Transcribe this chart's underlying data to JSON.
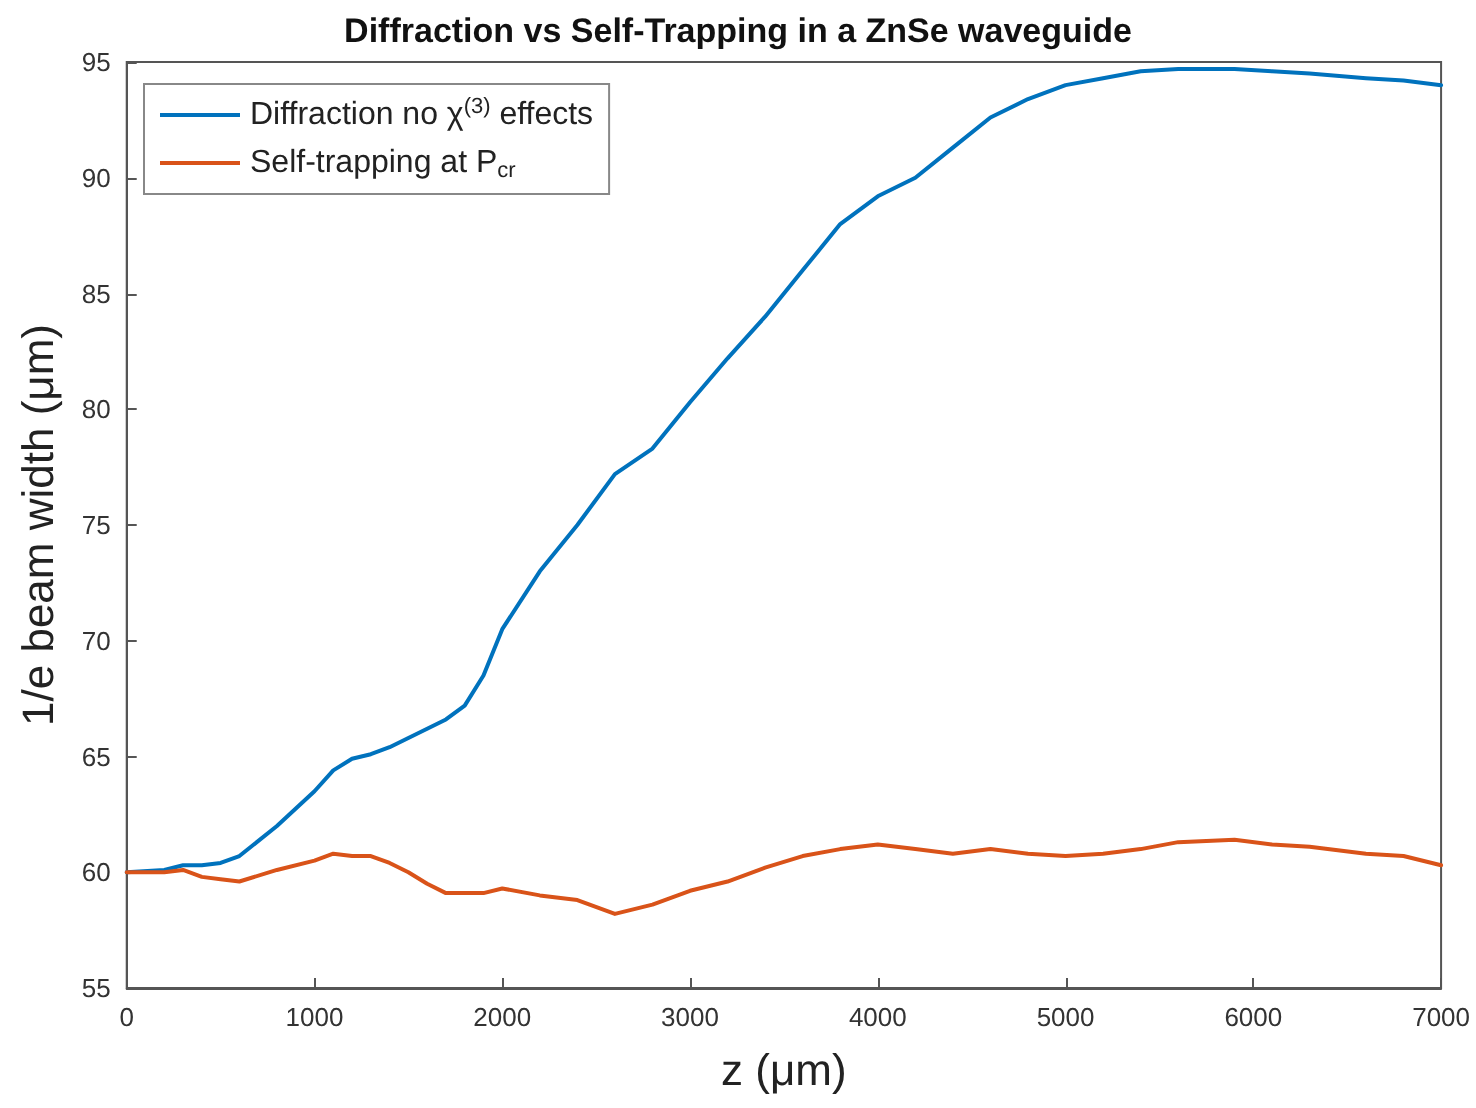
{
  "chart_data": {
    "type": "line",
    "title": "Diffraction vs Self-Trapping in a ZnSe waveguide",
    "xlabel": "z (μm)",
    "ylabel": "1/e beam width (μm)",
    "x": [
      0,
      200,
      300,
      400,
      500,
      600,
      800,
      1000,
      1100,
      1200,
      1300,
      1400,
      1500,
      1600,
      1700,
      1800,
      1900,
      2000,
      2200,
      2400,
      2600,
      2800,
      3000,
      3200,
      3400,
      3600,
      3800,
      4000,
      4200,
      4400,
      4600,
      4800,
      5000,
      5200,
      5400,
      5600,
      5900,
      6100,
      6300,
      6600,
      6800,
      7000
    ],
    "series": [
      {
        "name": "Diffraction no χ$^{(3)}$ effects",
        "color": "#0072bd",
        "values": [
          60,
          60.1,
          60.3,
          60.3,
          60.4,
          60.7,
          62,
          63.5,
          64.4,
          64.9,
          65.1,
          65.4,
          65.8,
          66.2,
          66.6,
          67.2,
          68.5,
          70.5,
          73,
          75,
          77.2,
          78.3,
          80.3,
          82.2,
          84,
          86,
          88,
          89.2,
          90,
          91.3,
          92.6,
          93.4,
          94,
          94.3,
          94.6,
          94.7,
          94.7,
          94.6,
          94.5,
          94.3,
          94.2,
          94
        ]
      },
      {
        "name": "Self-trapping at P$_{cr}$",
        "color": "#d95319",
        "values": [
          60,
          60,
          60.1,
          59.8,
          59.7,
          59.6,
          60.1,
          60.5,
          60.8,
          60.7,
          60.7,
          60.4,
          60,
          59.5,
          59.1,
          59.1,
          59.1,
          59.3,
          59,
          58.8,
          58.2,
          58.6,
          59.2,
          59.6,
          60.2,
          60.7,
          61,
          61.2,
          61,
          60.8,
          61,
          60.8,
          60.7,
          60.8,
          61,
          61.3,
          61.4,
          61.2,
          61.1,
          60.8,
          60.7,
          60.3
        ]
      }
    ],
    "xlim": [
      0,
      7000
    ],
    "xticks": [
      0,
      1000,
      2000,
      3000,
      4000,
      5000,
      6000,
      7000
    ],
    "ylim": [
      55,
      95
    ],
    "yticks": [
      55,
      60,
      65,
      70,
      75,
      80,
      85,
      90,
      95
    ],
    "grid": false,
    "legend": "top left",
    "marker": "none",
    "line_style": "solid"
  }
}
